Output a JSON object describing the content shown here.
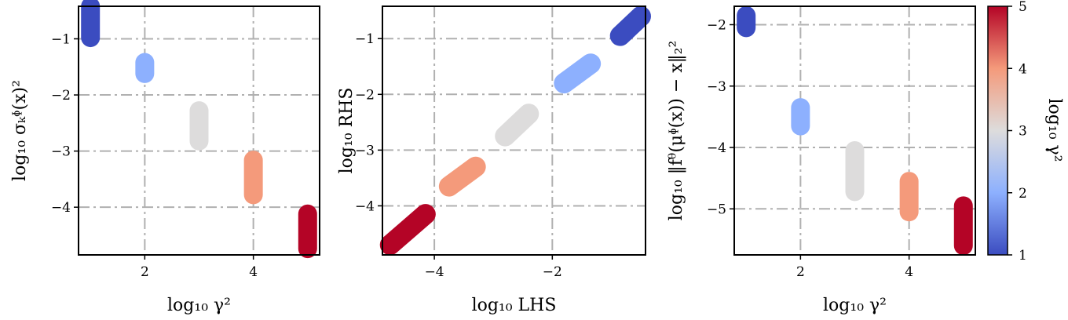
{
  "chart_data": [
    {
      "type": "scatter",
      "xlabel": "log₁₀ γ²",
      "ylabel": "log₁₀ σₖᶲ(x)²",
      "xlim": [
        0.78,
        5.22
      ],
      "ylim": [
        -4.85,
        -0.42
      ],
      "xticks": [
        2,
        4
      ],
      "yticks": [
        -1,
        -2,
        -3,
        -4
      ],
      "grid": true,
      "series": [
        {
          "color_value": 1,
          "color": "#3b4cc0",
          "x": [
            1,
            1
          ],
          "y": [
            -0.42,
            -0.98
          ]
        },
        {
          "color_value": 2,
          "color": "#8db0fe",
          "x": [
            2,
            2
          ],
          "y": [
            -1.42,
            -1.62
          ]
        },
        {
          "color_value": 3,
          "color": "#dddcdc",
          "x": [
            3,
            3
          ],
          "y": [
            -2.28,
            -2.82
          ]
        },
        {
          "color_value": 4,
          "color": "#f49a7b",
          "x": [
            4,
            4
          ],
          "y": [
            -3.16,
            -3.78
          ]
        },
        {
          "color_value": 5,
          "color": "#b40426",
          "x": [
            5,
            5
          ],
          "y": [
            -4.12,
            -4.74
          ]
        }
      ]
    },
    {
      "type": "scatter",
      "xlabel": "log₁₀ LHS",
      "ylabel": "log₁₀ RHS",
      "xlim": [
        -4.88,
        -0.42
      ],
      "ylim": [
        -4.88,
        -0.42
      ],
      "xticks": [
        -4,
        -2
      ],
      "yticks": [
        -1,
        -2,
        -3,
        -4
      ],
      "grid": true,
      "series": [
        {
          "color_value": 1,
          "color": "#3b4cc0",
          "x": [
            -0.5,
            -0.85
          ],
          "y": [
            -0.6,
            -0.95
          ]
        },
        {
          "color_value": 2,
          "color": "#8db0fe",
          "x": [
            -1.35,
            -1.8
          ],
          "y": [
            -1.45,
            -1.8
          ]
        },
        {
          "color_value": 3,
          "color": "#dddcdc",
          "x": [
            -2.4,
            -2.8
          ],
          "y": [
            -2.35,
            -2.75
          ]
        },
        {
          "color_value": 4,
          "color": "#f49a7b",
          "x": [
            -3.3,
            -3.75
          ],
          "y": [
            -3.3,
            -3.65
          ]
        },
        {
          "color_value": 5,
          "color": "#b40426",
          "x": [
            -4.15,
            -4.75
          ],
          "y": [
            -4.15,
            -4.7
          ]
        }
      ]
    },
    {
      "type": "scatter",
      "xlabel": "log₁₀ γ²",
      "ylabel": "log₁₀ ‖fᶿ(μᶲ(x)) − x‖₂²",
      "xlim": [
        0.78,
        5.22
      ],
      "ylim": [
        -5.75,
        -1.7
      ],
      "xticks": [
        2,
        4
      ],
      "yticks": [
        -2,
        -3,
        -4,
        -5
      ],
      "grid": true,
      "series": [
        {
          "color_value": 1,
          "color": "#3b4cc0",
          "x": [
            1,
            1
          ],
          "y": [
            -1.85,
            -2.05
          ]
        },
        {
          "color_value": 2,
          "color": "#8db0fe",
          "x": [
            2,
            2
          ],
          "y": [
            -3.35,
            -3.65
          ]
        },
        {
          "color_value": 3,
          "color": "#dddcdc",
          "x": [
            3,
            3
          ],
          "y": [
            -4.05,
            -4.72
          ]
        },
        {
          "color_value": 4,
          "color": "#f49a7b",
          "x": [
            4,
            4
          ],
          "y": [
            -4.55,
            -5.05
          ]
        },
        {
          "color_value": 5,
          "color": "#b40426",
          "x": [
            5,
            5
          ],
          "y": [
            -4.95,
            -5.6
          ]
        }
      ]
    }
  ],
  "colorbar": {
    "label": "log₁₀ γ²",
    "range": [
      1,
      5
    ],
    "ticks": [
      1,
      2,
      3,
      4,
      5
    ],
    "colormap": "coolwarm",
    "stops": [
      "#3b4cc0",
      "#8db0fe",
      "#dddcdc",
      "#f49a7b",
      "#b40426"
    ]
  }
}
